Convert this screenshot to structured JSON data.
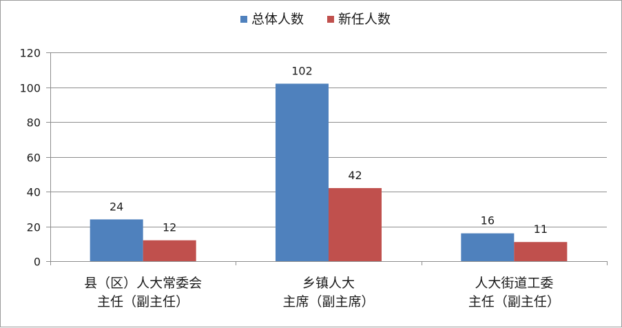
{
  "chart_data": {
    "type": "bar",
    "categories": [
      [
        "县（区）人大常委会",
        "主任（副主任）"
      ],
      [
        "乡镇人大",
        "主席（副主席）"
      ],
      [
        "人大街道工委",
        "主任（副主任）"
      ]
    ],
    "series": [
      {
        "name": "总体人数",
        "values": [
          24,
          102,
          16
        ],
        "color": "#4f81bd"
      },
      {
        "name": "新任人数",
        "values": [
          12,
          42,
          11
        ],
        "color": "#c0504d"
      }
    ],
    "ylim": [
      0,
      120
    ],
    "yticks": [
      0,
      20,
      40,
      60,
      80,
      100,
      120
    ],
    "grid": true,
    "legend": "top-center",
    "data_labels": true
  }
}
